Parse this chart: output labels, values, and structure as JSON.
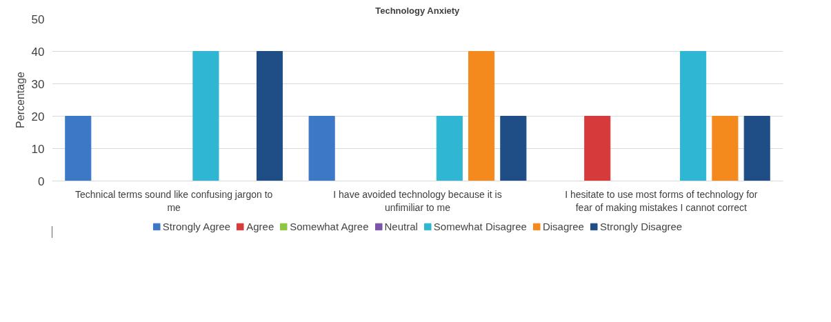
{
  "chart_data": {
    "type": "bar",
    "title": "Technology Anxiety",
    "ylabel": "Percentage",
    "categories": [
      "Technical terms sound like confusing jargon to me",
      "I have avoided technology because it is unfimiliar to me",
      "I hesitate to use most forms of technology for fear of making mistakes I cannot correct"
    ],
    "series": [
      {
        "name": "Strongly Agree",
        "color": "#3d78c6",
        "values": [
          20,
          20,
          0
        ]
      },
      {
        "name": "Agree",
        "color": "#d63a3a",
        "values": [
          0,
          0,
          20
        ]
      },
      {
        "name": "Somewhat Agree",
        "color": "#8dc63f",
        "values": [
          0,
          0,
          0
        ]
      },
      {
        "name": "Neutral",
        "color": "#7b56a8",
        "values": [
          0,
          0,
          0
        ]
      },
      {
        "name": "Somewhat Disagree",
        "color": "#2fb6d2",
        "values": [
          40,
          20,
          40
        ]
      },
      {
        "name": "Disagree",
        "color": "#f48a1e",
        "values": [
          0,
          40,
          20
        ]
      },
      {
        "name": "Strongly Disagree",
        "color": "#1f4e87",
        "values": [
          40,
          20,
          20
        ]
      }
    ],
    "ylim": [
      0,
      50
    ],
    "yticks": [
      0,
      10,
      20,
      30,
      40,
      50
    ],
    "grid": "y",
    "legend": "bottom"
  }
}
